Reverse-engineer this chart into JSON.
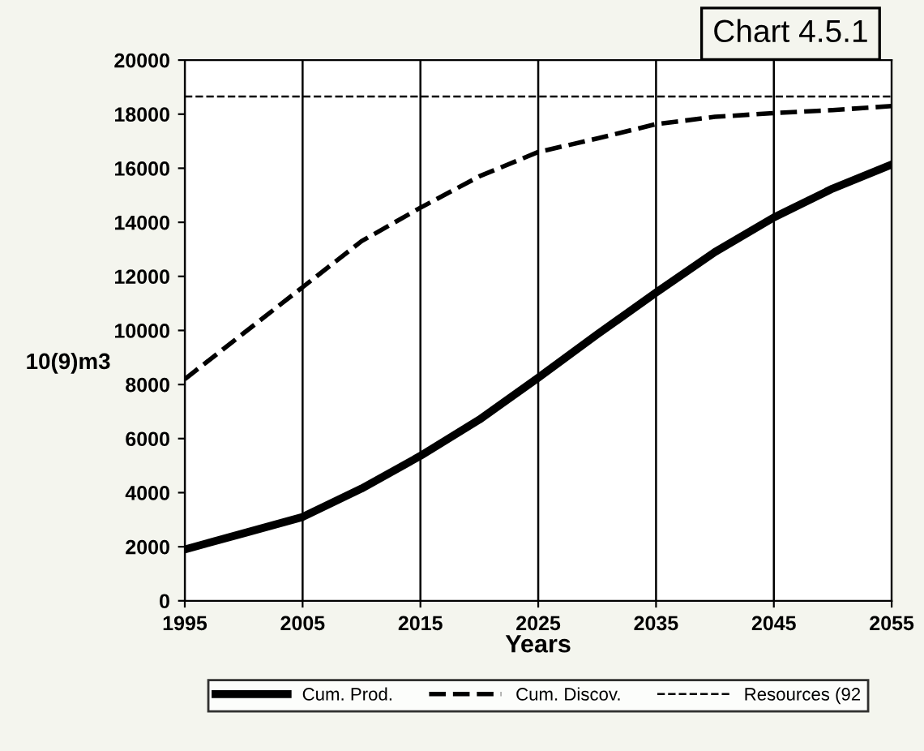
{
  "chart_data": {
    "type": "line",
    "title": "Chart 4.5.1",
    "xlabel": "Years",
    "ylabel": "10(9)m3",
    "x": [
      1995,
      2000,
      2005,
      2010,
      2015,
      2020,
      2025,
      2030,
      2035,
      2040,
      2045,
      2050,
      2055
    ],
    "series": [
      {
        "name": "Cum. Prod.",
        "color": "#000000",
        "line_style": "solid",
        "values": [
          1900,
          2500,
          3100,
          4150,
          5360,
          6700,
          8250,
          9850,
          11400,
          12900,
          14180,
          15250,
          16140
        ]
      },
      {
        "name": "Cum. Discov.",
        "color": "#000000",
        "line_style": "dashed",
        "values": [
          8200,
          9900,
          11600,
          13300,
          14540,
          15700,
          16600,
          17100,
          17630,
          17900,
          18040,
          18150,
          18300
        ]
      },
      {
        "name": "Resources (92",
        "color": "#000000",
        "line_style": "dashed",
        "values": [
          18650,
          18650,
          18650,
          18650,
          18650,
          18650,
          18650,
          18650,
          18650,
          18650,
          18650,
          18650,
          18650
        ]
      }
    ],
    "xlim": [
      1995,
      2055
    ],
    "xticks": [
      1995,
      2005,
      2015,
      2025,
      2035,
      2045,
      2055
    ],
    "ylim": [
      0,
      20000
    ],
    "yticks": [
      0,
      2000,
      4000,
      6000,
      8000,
      10000,
      12000,
      14000,
      16000,
      18000,
      20000
    ],
    "grid": "x",
    "legend": "bottom"
  }
}
